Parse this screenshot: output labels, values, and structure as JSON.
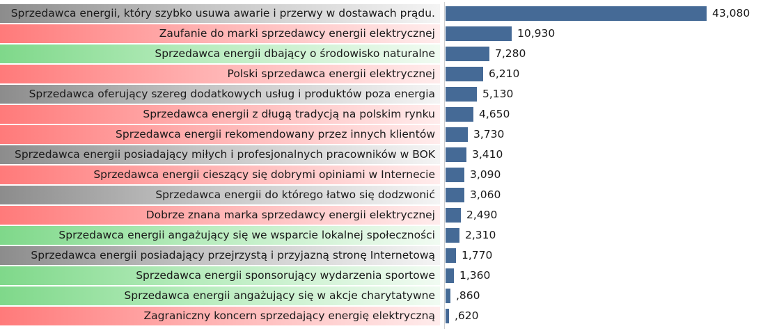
{
  "chart_data": {
    "type": "bar",
    "orientation": "horizontal",
    "categories": [
      "Sprzedawca energii, który szybko usuwa awarie i przerwy w dostawach prądu.",
      "Zaufanie do marki sprzedawcy energii elektrycznej",
      "Sprzedawca energii dbający o środowisko naturalne",
      "Polski sprzedawca energii elektrycznej",
      "Sprzedawca oferujący szereg dodatkowych usług i produktów poza energia",
      "Sprzedawca energii z długą tradycją na polskim rynku",
      "Sprzedawca energii rekomendowany przez innych klientów",
      "Sprzedawca energii posiadający miłych i profesjonalnych pracowników w BOK",
      "Sprzedawca energii cieszący się dobrymi opiniami w Internecie",
      "Sprzedawca energii do którego łatwo się dodzwonić",
      "Dobrze znana marka sprzedawcy energii elektrycznej",
      "Sprzedawca energii angażujący się we wsparcie lokalnej społeczności",
      "Sprzedawca energii posiadający przejrzystą i przyjazną stronę Internetową",
      "Sprzedawca energii sponsorujący wydarzenia sportowe",
      "Sprzedawca energii angażujący się w akcje charytatywne",
      "Zagraniczny koncern sprzedający energię elektryczną"
    ],
    "values": [
      43.08,
      10.93,
      7.28,
      6.21,
      5.13,
      4.65,
      3.73,
      3.41,
      3.09,
      3.06,
      2.49,
      2.31,
      1.77,
      1.36,
      0.86,
      0.62
    ],
    "value_labels": [
      "43,080",
      "10,930",
      "7,280",
      "6,210",
      "5,130",
      "4,650",
      "3,730",
      "3,410",
      "3,090",
      "3,060",
      "2,490",
      "2,310",
      "1,770",
      "1,360",
      ",860",
      ",620"
    ],
    "label_groups": [
      "gray",
      "red",
      "green",
      "red",
      "gray",
      "red",
      "red",
      "gray",
      "red",
      "gray",
      "red",
      "green",
      "gray",
      "green",
      "green",
      "red"
    ],
    "group_colors": {
      "red": "#ff7a7a",
      "green": "#7fd88a",
      "gray": "#8c8c8c"
    },
    "bar_color": "#456a96",
    "xlim": [
      0,
      43.08
    ],
    "grid": false,
    "legend": "none"
  }
}
